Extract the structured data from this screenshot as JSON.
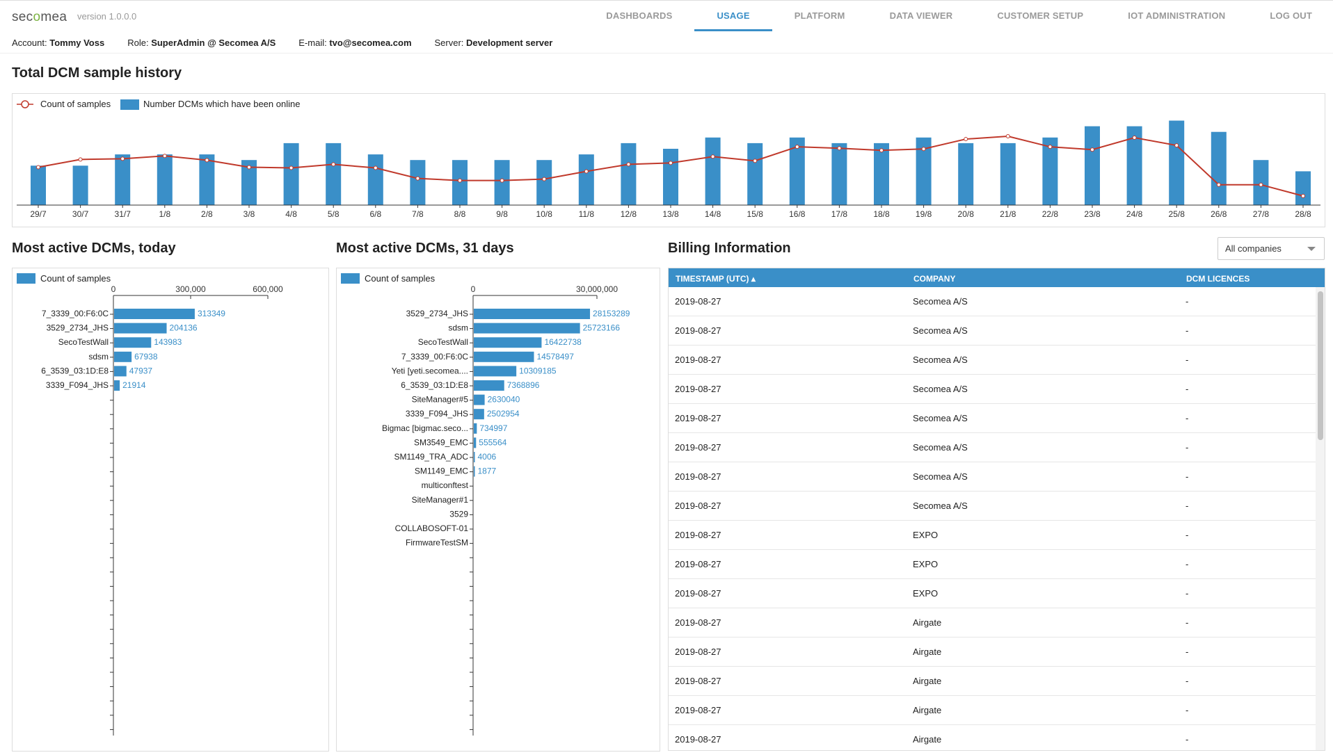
{
  "app": {
    "logo": "secomea",
    "version": "version 1.0.0.0"
  },
  "nav": [
    {
      "label": "DASHBOARDS",
      "active": false
    },
    {
      "label": "USAGE",
      "active": true
    },
    {
      "label": "PLATFORM",
      "active": false
    },
    {
      "label": "DATA VIEWER",
      "active": false
    },
    {
      "label": "CUSTOMER SETUP",
      "active": false
    },
    {
      "label": "IOT ADMINISTRATION",
      "active": false
    },
    {
      "label": "LOG OUT",
      "active": false
    }
  ],
  "info": {
    "account_label": "Account:",
    "account": "Tommy Voss",
    "role_label": "Role:",
    "role": "SuperAdmin @ Secomea A/S",
    "email_label": "E-mail:",
    "email": "tvo@secomea.com",
    "server_label": "Server:",
    "server": "Development server"
  },
  "colors": {
    "accent": "#3a8fc8",
    "bar": "#3a8fc8",
    "line": "#c0392b"
  },
  "history": {
    "title": "Total DCM sample history",
    "legend_line": "Count of samples",
    "legend_bar": "Number DCMs which have been online"
  },
  "today": {
    "title": "Most active DCMs, today",
    "legend": "Count of samples"
  },
  "month": {
    "title": "Most active DCMs, 31 days",
    "legend": "Count of samples"
  },
  "chart_data": [
    {
      "type": "bar",
      "title": "Total DCM sample history",
      "categories": [
        "29/7",
        "30/7",
        "31/7",
        "1/8",
        "2/8",
        "3/8",
        "4/8",
        "5/8",
        "6/8",
        "7/8",
        "8/8",
        "9/8",
        "10/8",
        "11/8",
        "12/8",
        "13/8",
        "14/8",
        "15/8",
        "16/8",
        "17/8",
        "18/8",
        "19/8",
        "20/8",
        "21/8",
        "22/8",
        "23/8",
        "24/8",
        "25/8",
        "26/8",
        "27/8",
        "28/8"
      ],
      "series": [
        {
          "name": "Number DCMs which have been online",
          "kind": "bar",
          "values": [
            7,
            7,
            9,
            9,
            9,
            8,
            11,
            11,
            9,
            8,
            8,
            8,
            8,
            9,
            11,
            10,
            12,
            11,
            12,
            11,
            11,
            12,
            11,
            11,
            12,
            14,
            14,
            15,
            13,
            8,
            6
          ]
        },
        {
          "name": "Count of samples",
          "kind": "line",
          "values": [
            54,
            65,
            66,
            70,
            64,
            54,
            53,
            58,
            53,
            38,
            35,
            35,
            37,
            48,
            58,
            60,
            69,
            63,
            83,
            81,
            78,
            80,
            94,
            98,
            83,
            79,
            96,
            85,
            29,
            29,
            13
          ]
        }
      ],
      "legend": "top-left",
      "grid": false
    },
    {
      "type": "bar",
      "orientation": "horizontal",
      "title": "Most active DCMs, today",
      "series_name": "Count of samples",
      "categories": [
        "7_3339_00:F6:0C",
        "3529_2734_JHS",
        "SecoTestWall",
        "sdsm",
        "6_3539_03:1D:E8",
        "3339_F094_JHS"
      ],
      "values": [
        313349,
        204136,
        143983,
        67938,
        47937,
        21914
      ],
      "ticks": [
        0,
        300000,
        600000
      ],
      "tick_labels": [
        "0",
        "300,000",
        "600,000"
      ],
      "xlim": [
        0,
        600000
      ]
    },
    {
      "type": "bar",
      "orientation": "horizontal",
      "title": "Most active DCMs, 31 days",
      "series_name": "Count of samples",
      "categories": [
        "3529_2734_JHS",
        "sdsm",
        "SecoTestWall",
        "7_3339_00:F6:0C",
        "Yeti [yeti.secomea....",
        "6_3539_03:1D:E8",
        "SiteManager#5",
        "3339_F094_JHS",
        "Bigmac [bigmac.seco...",
        "SM3549_EMC",
        "SM1149_TRA_ADC",
        "SM1149_EMC",
        "multiconftest",
        "SiteManager#1",
        "3529",
        "COLLABOSOFT-01",
        "FirmwareTestSM"
      ],
      "values": [
        28153289,
        25723166,
        16422738,
        14578497,
        10309185,
        7368896,
        2630040,
        2502954,
        734997,
        555564,
        4006,
        1877,
        null,
        null,
        null,
        null,
        null
      ],
      "ticks": [
        0,
        30000000
      ],
      "tick_labels": [
        "0",
        "30,000,000"
      ],
      "xlim": [
        0,
        30000000
      ]
    }
  ],
  "billing": {
    "title": "Billing Information",
    "filter": "All companies",
    "columns": [
      "TIMESTAMP (UTC) ▴",
      "COMPANY",
      "DCM LICENCES"
    ],
    "rows": [
      [
        "2019-08-27",
        "Secomea A/S",
        "-"
      ],
      [
        "2019-08-27",
        "Secomea A/S",
        "-"
      ],
      [
        "2019-08-27",
        "Secomea A/S",
        "-"
      ],
      [
        "2019-08-27",
        "Secomea A/S",
        "-"
      ],
      [
        "2019-08-27",
        "Secomea A/S",
        "-"
      ],
      [
        "2019-08-27",
        "Secomea A/S",
        "-"
      ],
      [
        "2019-08-27",
        "Secomea A/S",
        "-"
      ],
      [
        "2019-08-27",
        "Secomea A/S",
        "-"
      ],
      [
        "2019-08-27",
        "EXPO",
        "-"
      ],
      [
        "2019-08-27",
        "EXPO",
        "-"
      ],
      [
        "2019-08-27",
        "EXPO",
        "-"
      ],
      [
        "2019-08-27",
        "Airgate",
        "-"
      ],
      [
        "2019-08-27",
        "Airgate",
        "-"
      ],
      [
        "2019-08-27",
        "Airgate",
        "-"
      ],
      [
        "2019-08-27",
        "Airgate",
        "-"
      ],
      [
        "2019-08-27",
        "Airgate",
        "-"
      ]
    ]
  }
}
